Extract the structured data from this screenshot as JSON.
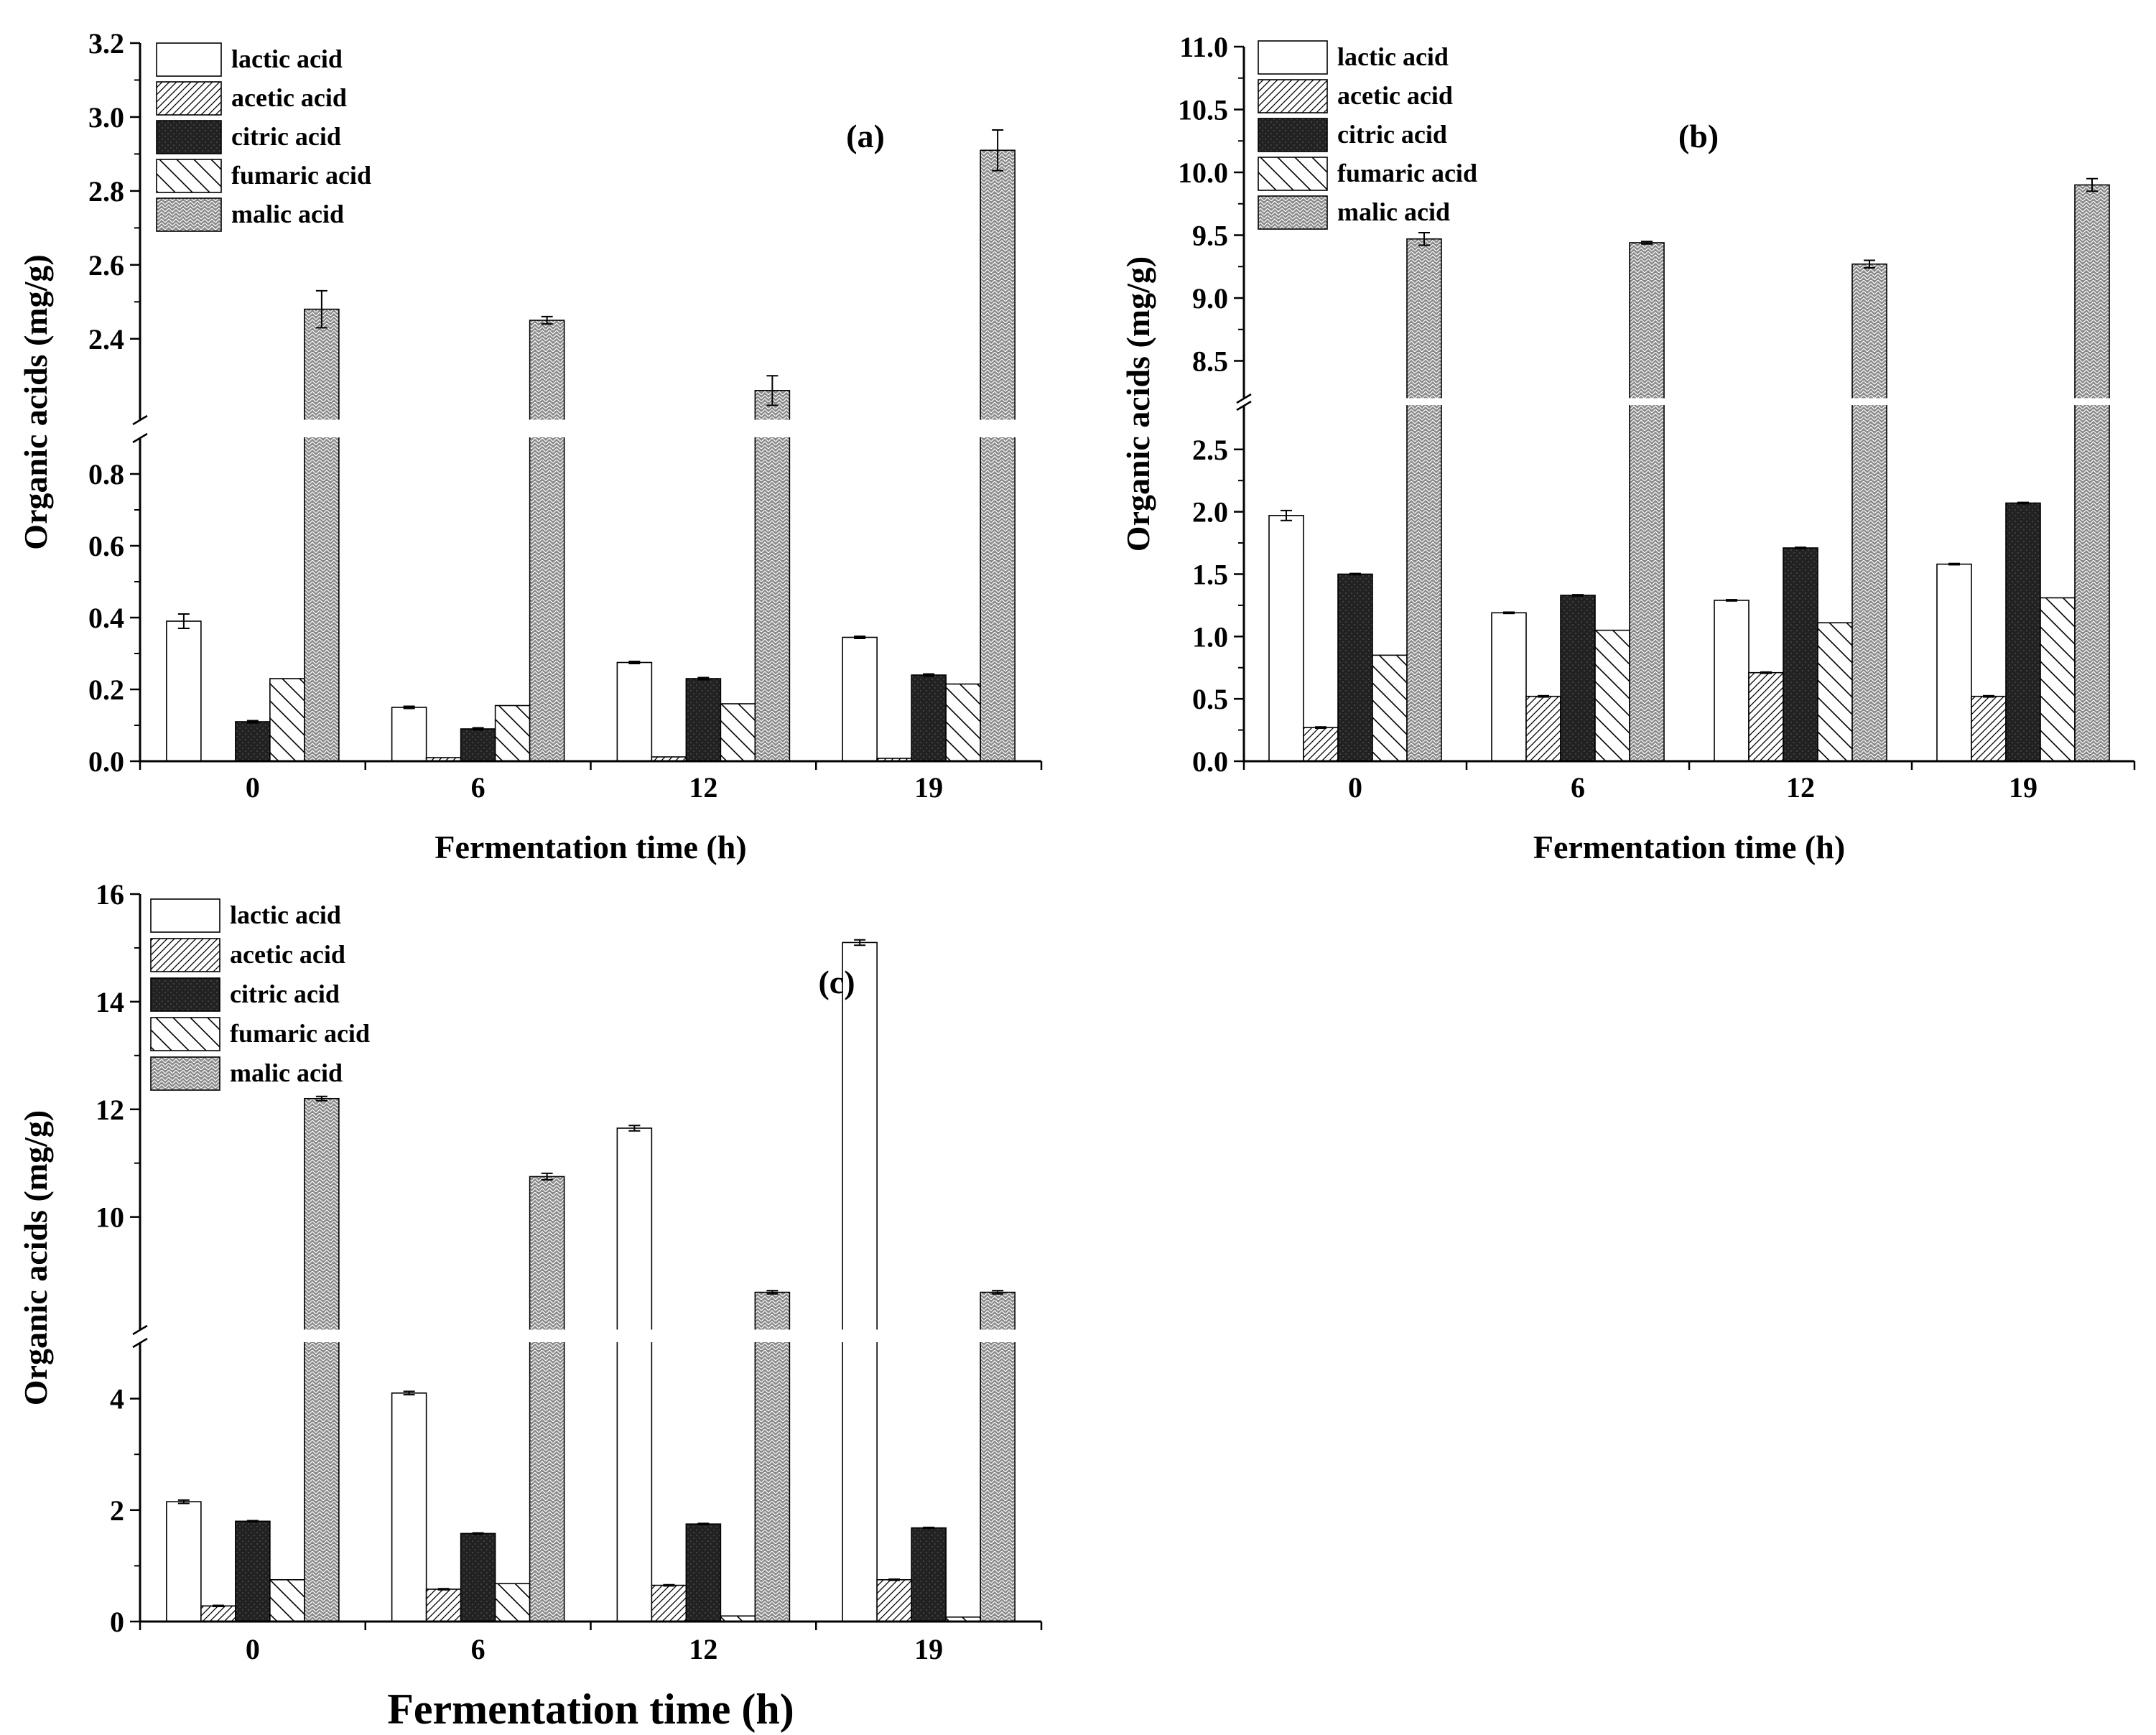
{
  "chart_data": [
    {
      "panel_label": "(a)",
      "type": "bar",
      "xlabel": "Fermentation time (h)",
      "ylabel": "Organic acids (mg/g)",
      "categories": [
        "0",
        "6",
        "12",
        "19"
      ],
      "axis_break": {
        "lower_range": [
          0,
          0.9
        ],
        "upper_range": [
          2.18,
          3.2
        ]
      },
      "yticks_lower": [
        "0.0",
        "0.2",
        "0.4",
        "0.6",
        "0.8"
      ],
      "yticks_upper": [
        "2.4",
        "2.6",
        "2.8",
        "3.0",
        "3.2"
      ],
      "series": [
        {
          "name": "lactic acid",
          "values": [
            0.39,
            0.15,
            0.275,
            0.345
          ],
          "errors": [
            0.02,
            0.003,
            0.003,
            0.003
          ]
        },
        {
          "name": "acetic acid",
          "values": [
            0,
            0.01,
            0.012,
            0.008
          ],
          "errors": [
            0,
            0,
            0,
            0
          ]
        },
        {
          "name": "citric acid",
          "values": [
            0.11,
            0.09,
            0.23,
            0.24
          ],
          "errors": [
            0.003,
            0.003,
            0.003,
            0.003
          ]
        },
        {
          "name": "fumaric acid",
          "values": [
            0.23,
            0.155,
            0.16,
            0.215
          ],
          "errors": [
            0,
            0,
            0,
            0
          ]
        },
        {
          "name": "malic acid",
          "values": [
            2.48,
            2.45,
            2.26,
            2.91
          ],
          "errors": [
            0.05,
            0.01,
            0.04,
            0.055
          ]
        }
      ]
    },
    {
      "panel_label": "(b)",
      "type": "bar",
      "xlabel": "Fermentation time (h)",
      "ylabel": "Organic acids (mg/g)",
      "categories": [
        "0",
        "6",
        "12",
        "19"
      ],
      "axis_break": {
        "lower_range": [
          0,
          2.85
        ],
        "upper_range": [
          8.2,
          11.0
        ]
      },
      "yticks_lower": [
        "0.0",
        "0.5",
        "1.0",
        "1.5",
        "2.0",
        "2.5"
      ],
      "yticks_upper": [
        "8.5",
        "9.0",
        "9.5",
        "10.0",
        "10.5",
        "11.0"
      ],
      "series": [
        {
          "name": "lactic acid",
          "values": [
            1.97,
            1.19,
            1.29,
            1.58
          ],
          "errors": [
            0.04,
            0.005,
            0.005,
            0.005
          ]
        },
        {
          "name": "acetic acid",
          "values": [
            0.27,
            0.52,
            0.71,
            0.52
          ],
          "errors": [
            0.005,
            0.005,
            0.005,
            0.005
          ]
        },
        {
          "name": "citric acid",
          "values": [
            1.5,
            1.33,
            1.71,
            2.07
          ],
          "errors": [
            0.005,
            0.005,
            0.005,
            0.005
          ]
        },
        {
          "name": "fumaric acid",
          "values": [
            0.85,
            1.05,
            1.11,
            1.31
          ],
          "errors": [
            0,
            0,
            0,
            0
          ]
        },
        {
          "name": "malic acid",
          "values": [
            9.47,
            9.44,
            9.27,
            9.9
          ],
          "errors": [
            0.05,
            0.01,
            0.03,
            0.05
          ]
        }
      ]
    },
    {
      "panel_label": "(c)",
      "type": "bar",
      "xlabel": "Fermentation time (h)",
      "ylabel": "Organic acids (mg/g)",
      "categories": [
        "0",
        "6",
        "12",
        "19"
      ],
      "axis_break": {
        "lower_range": [
          0,
          5.0
        ],
        "upper_range": [
          7.9,
          16
        ]
      },
      "yticks_lower": [
        "0",
        "2",
        "4"
      ],
      "yticks_upper": [
        "10",
        "12",
        "14",
        "16"
      ],
      "series": [
        {
          "name": "lactic acid",
          "values": [
            2.15,
            4.1,
            11.65,
            15.1
          ],
          "errors": [
            0.03,
            0.03,
            0.05,
            0.05
          ]
        },
        {
          "name": "acetic acid",
          "values": [
            0.28,
            0.58,
            0.65,
            0.75
          ],
          "errors": [
            0.01,
            0.01,
            0.01,
            0.01
          ]
        },
        {
          "name": "citric acid",
          "values": [
            1.8,
            1.58,
            1.75,
            1.68
          ],
          "errors": [
            0.01,
            0.01,
            0.01,
            0.01
          ]
        },
        {
          "name": "fumaric acid",
          "values": [
            0.75,
            0.68,
            0.1,
            0.08
          ],
          "errors": [
            0,
            0,
            0,
            0
          ]
        },
        {
          "name": "malic acid",
          "values": [
            12.2,
            10.75,
            8.6,
            8.6
          ],
          "errors": [
            0.04,
            0.06,
            0.03,
            0.03
          ]
        }
      ]
    }
  ]
}
